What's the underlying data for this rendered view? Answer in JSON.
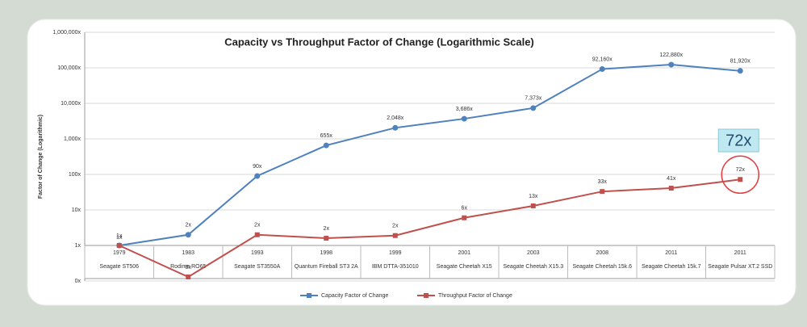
{
  "chart_data": {
    "type": "line",
    "title": "Capacity vs Throughput Factor of Change (Logarithmic Scale)",
    "y_label": "Factor of Change (Logarithmic)",
    "annotation": "72x",
    "log_scale": true,
    "years": [
      "1979",
      "1983",
      "1993",
      "1998",
      "1999",
      "2001",
      "2003",
      "2008",
      "2011",
      "2011"
    ],
    "categories": [
      "Seagate ST506",
      "Rodime RO65",
      "Seagate ST3550A",
      "Quantum Fireball ST3 2A",
      "IBM DTTA-351010",
      "Seagate Cheetah X15",
      "Seagate Cheetah X15.3",
      "Seagate Cheetah 15k.6",
      "Seagate Cheetah 15k.7",
      "Seagate Pulsar XT.2 SSD"
    ],
    "ylim": [
      0.1,
      1000000
    ],
    "yticks": [
      {
        "value": 0.1,
        "label": "0x"
      },
      {
        "value": 1,
        "label": "1x"
      },
      {
        "value": 10,
        "label": "10x"
      },
      {
        "value": 100,
        "label": "100x"
      },
      {
        "value": 1000,
        "label": "1,000x"
      },
      {
        "value": 10000,
        "label": "10,000x"
      },
      {
        "value": 100000,
        "label": "100,000x"
      },
      {
        "value": 1000000,
        "label": "1,000,000x"
      }
    ],
    "grid": true,
    "legend": "bottom",
    "series": [
      {
        "name": "Capacity Factor of Change",
        "color": "#4f81bd",
        "values": [
          1,
          2,
          90,
          655,
          2048,
          3686,
          7373,
          92160,
          122880,
          81920
        ],
        "value_labels": [
          "1x",
          "2x",
          "90x",
          "655x",
          "2,048x",
          "3,686x",
          "7,373x",
          "92,160x",
          "122,880x",
          "81,920x"
        ]
      },
      {
        "name": "Throughput Factor of Change",
        "color": "#c0504d",
        "values": [
          1,
          0.13,
          2,
          1.6,
          1.9,
          6,
          13,
          33,
          41,
          72
        ],
        "value_labels": [
          "1x",
          "0x",
          "2x",
          "2x",
          "2x",
          "6x",
          "13x",
          "33x",
          "41x",
          "72x"
        ]
      }
    ]
  }
}
